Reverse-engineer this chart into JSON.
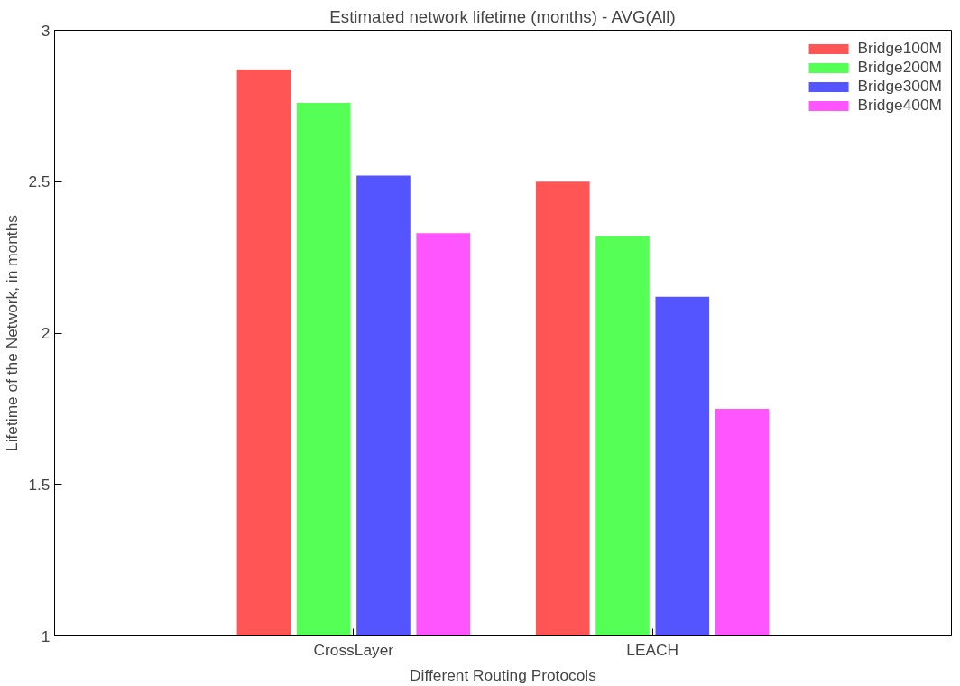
{
  "chart_data": {
    "type": "bar",
    "title": "Estimated network lifetime (months) - AVG(All)",
    "xlabel": "Different Routing Protocols",
    "ylabel": "Lifetime of the Network, in months",
    "categories": [
      "CrossLayer",
      "LEACH"
    ],
    "series": [
      {
        "name": "Bridge100M",
        "color": "#ff5555",
        "values": [
          2.87,
          2.5
        ]
      },
      {
        "name": "Bridge200M",
        "color": "#55ff55",
        "values": [
          2.76,
          2.32
        ]
      },
      {
        "name": "Bridge300M",
        "color": "#5555ff",
        "values": [
          2.52,
          2.12
        ]
      },
      {
        "name": "Bridge400M",
        "color": "#ff55ff",
        "values": [
          2.33,
          1.75
        ]
      }
    ],
    "ylim": [
      1,
      3
    ],
    "yticks": [
      1,
      1.5,
      2,
      2.5,
      3
    ],
    "grid": false,
    "legend": "top right"
  }
}
